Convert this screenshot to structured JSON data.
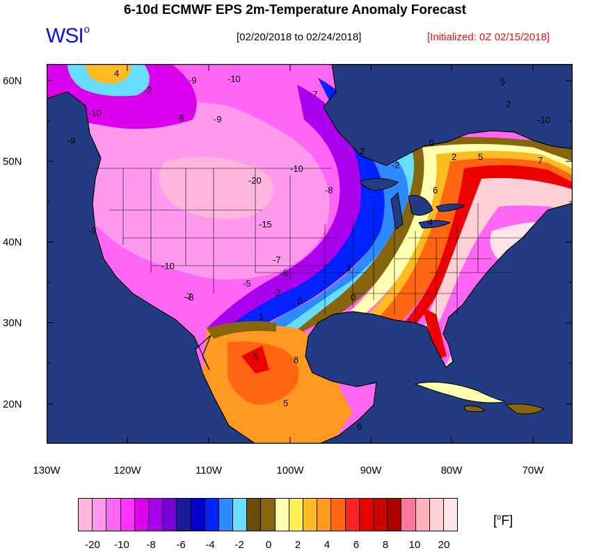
{
  "header": {
    "title": "6-10d ECMWF EPS 2m-Temperature Anomaly Forecast",
    "logo_text": "WSI",
    "logo_sup": "o",
    "date_range": "[02/20/2018 to 02/24/2018]",
    "initialized": "[Initialized: 0Z 02/15/2018]"
  },
  "map": {
    "region": "North America",
    "latitude_labels": [
      "60N",
      "50N",
      "40N",
      "30N",
      "20N"
    ],
    "longitude_labels": [
      "130W",
      "120W",
      "110W",
      "100W",
      "90W",
      "80W",
      "70W"
    ],
    "contour_labels": [
      "4",
      "-2",
      "-9",
      "-10",
      "-7",
      "-10",
      "-8",
      "-9",
      "-9",
      "-20",
      "-10",
      "-8",
      "-15",
      "-10",
      "-8",
      "-7",
      "-6",
      "-5",
      "-2",
      "0",
      "1",
      "3",
      "0",
      "2",
      "-2",
      "0",
      "2",
      "5",
      "7",
      "6",
      "4",
      "8",
      "5",
      "5",
      "6",
      "5",
      "2",
      "-10",
      "-9",
      "-7"
    ]
  },
  "colorbar": {
    "colors": [
      "#ffb6dc",
      "#ff99ee",
      "#ff66f5",
      "#ff33ff",
      "#dd00ee",
      "#aa00ee",
      "#7700dd",
      "#1a1a9a",
      "#0000cc",
      "#0022ff",
      "#2e8bff",
      "#66ddff",
      "#6b4e0c",
      "#86650d",
      "#ffffb0",
      "#ffee55",
      "#ffbb22",
      "#ff9922",
      "#ff6611",
      "#ff2222",
      "#ee0000",
      "#cc0000",
      "#aa0000",
      "#ff7799",
      "#ffb0b8",
      "#ffd0d5",
      "#ffe4e8"
    ],
    "tick_labels": [
      "-20",
      "-10",
      "-8",
      "-6",
      "-4",
      "-2",
      "0",
      "2",
      "4",
      "6",
      "8",
      "10",
      "20"
    ],
    "unit_open": "[",
    "unit_sup": "o",
    "unit_close": "F]"
  },
  "palette": {
    "ocean": "#233b82",
    "border": "#000000"
  }
}
